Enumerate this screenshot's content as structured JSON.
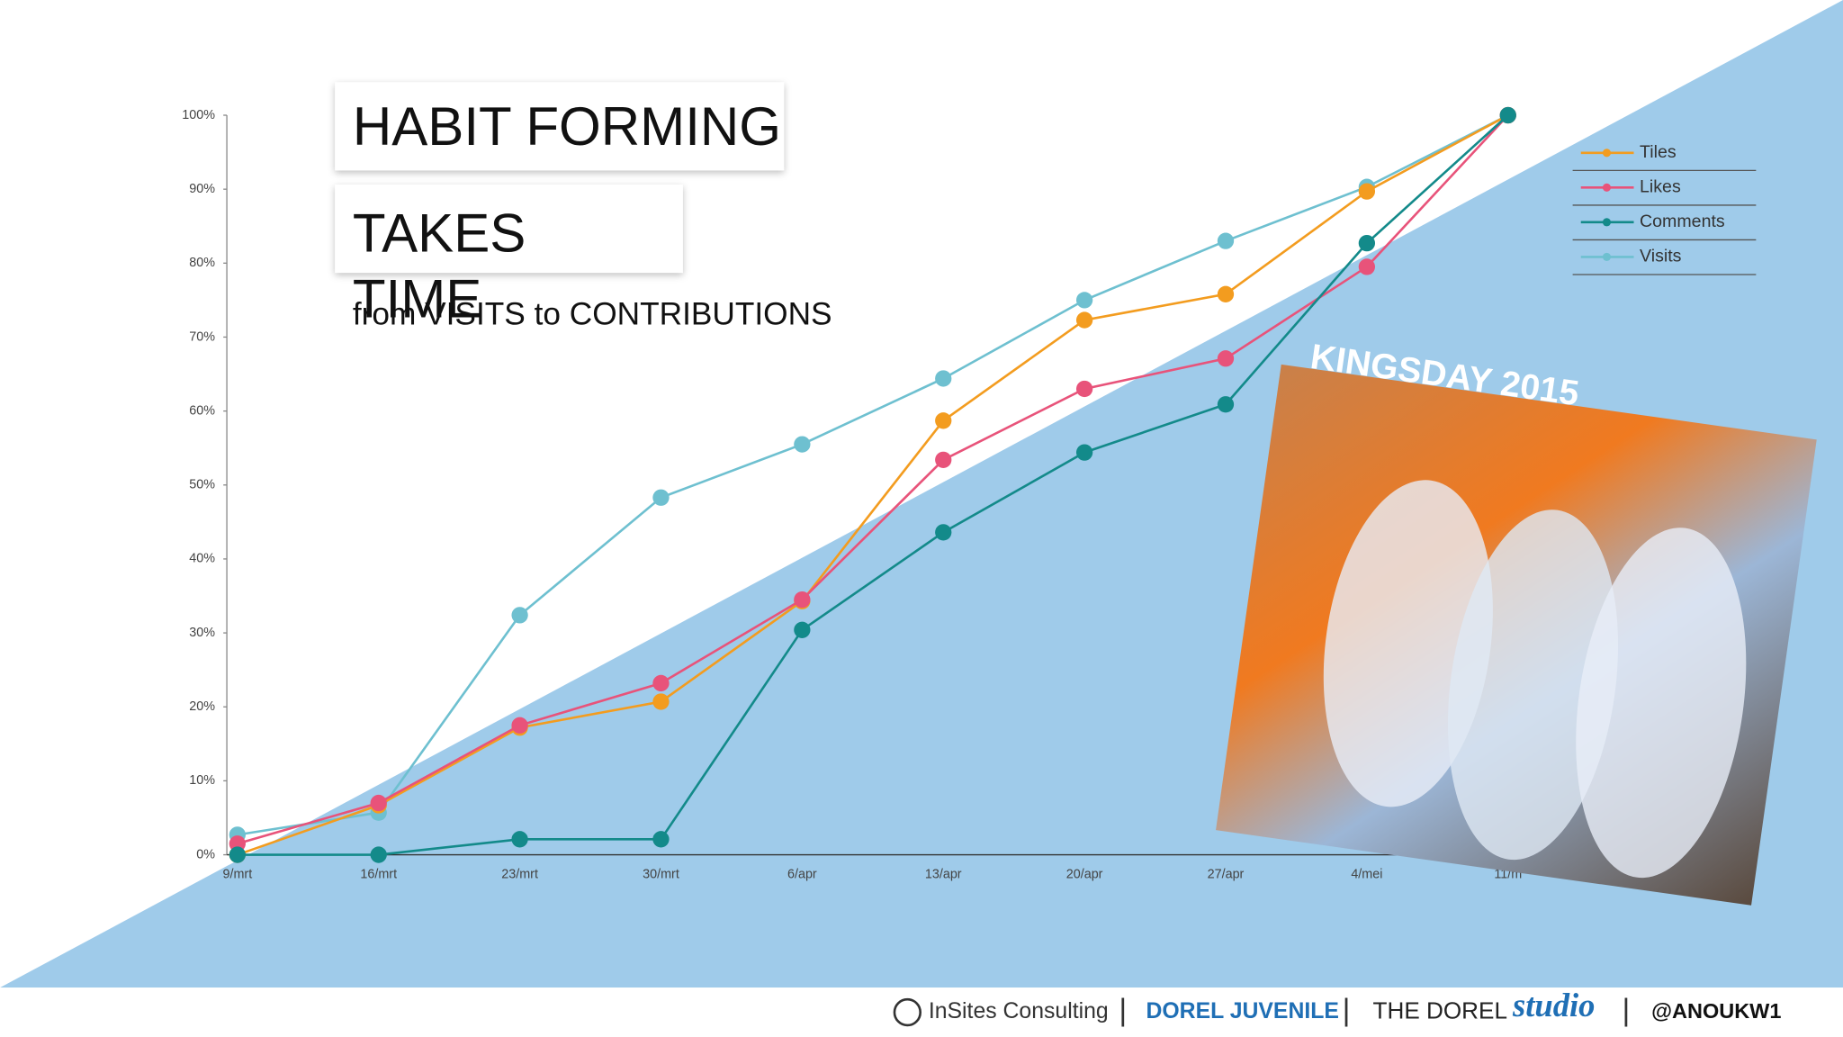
{
  "title": "HABIT FORMING",
  "title_2": "TAKES TIME",
  "subtitle": "from VISITS to CONTRIBUTIONS",
  "photo_caption": "KINGSDAY 2015",
  "footer": [
    "InSites Consulting",
    "DOREL JUVENILE",
    "THE DOREL",
    "studio",
    "@ANOUKW1"
  ],
  "chart_data": {
    "type": "line",
    "categories": [
      "9/mrt",
      "16/mrt",
      "23/mrt",
      "30/mrt",
      "6/apr",
      "13/apr",
      "20/apr",
      "27/apr",
      "4/mei",
      "11/m"
    ],
    "series": [
      {
        "name": "Tiles",
        "color": "#f39c1f",
        "values": [
          0,
          6.7,
          17.2,
          20.7,
          34.3,
          58.7,
          72.3,
          75.8,
          89.7,
          100
        ]
      },
      {
        "name": "Likes",
        "color": "#e8537a",
        "values": [
          1.5,
          7,
          17.5,
          23.2,
          34.5,
          53.4,
          63,
          67.1,
          79.5,
          100
        ]
      },
      {
        "name": "Comments",
        "color": "#138a8a",
        "values": [
          0,
          0,
          2.1,
          2.1,
          30.4,
          43.6,
          54.4,
          60.9,
          82.7,
          100
        ]
      },
      {
        "name": "Visits",
        "color": "#6ec0d0",
        "values": [
          2.7,
          5.7,
          32.4,
          48.3,
          55.5,
          64.4,
          75,
          83,
          90.3,
          100
        ]
      }
    ],
    "ylim": [
      0,
      100
    ],
    "yticks": [
      {
        "value": 0,
        "label": "0%"
      },
      {
        "value": 10,
        "label": "10%"
      },
      {
        "value": 20,
        "label": "20%"
      },
      {
        "value": 30,
        "label": "30%"
      },
      {
        "value": 40,
        "label": "40%"
      },
      {
        "value": 50,
        "label": "50%"
      },
      {
        "value": 60,
        "label": "60%"
      },
      {
        "value": 70,
        "label": "70%"
      },
      {
        "value": 80,
        "label": "80%"
      },
      {
        "value": 90,
        "label": "90%"
      },
      {
        "value": 100,
        "label": "100%"
      }
    ],
    "grid": false,
    "legend": "upper right"
  }
}
